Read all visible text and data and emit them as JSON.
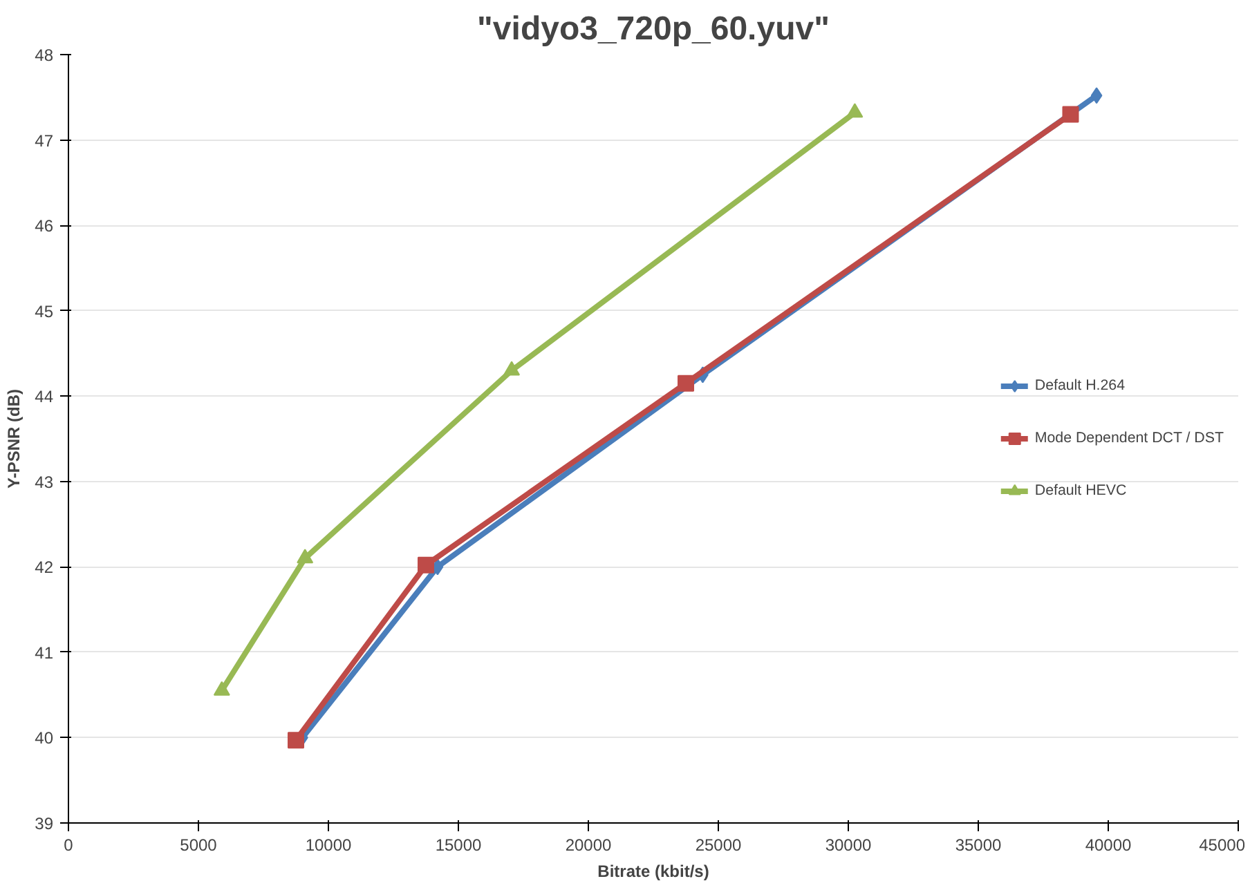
{
  "chart_data": {
    "type": "line",
    "title": "\"vidyo3_720p_60.yuv\"",
    "xlabel": "Bitrate (kbit/s)",
    "ylabel": "Y-PSNR (dB)",
    "xlim": [
      0,
      45000
    ],
    "xticks": [
      0,
      5000,
      10000,
      15000,
      20000,
      25000,
      30000,
      35000,
      40000,
      45000
    ],
    "ylim": [
      39,
      48
    ],
    "yticks": [
      39,
      40,
      41,
      42,
      43,
      44,
      45,
      46,
      47,
      48
    ],
    "grid": "y",
    "legend": "center right",
    "series": [
      {
        "name": "Default H.264",
        "color": "#4a7ebb",
        "marker": "diamond",
        "x": [
          9000,
          14200,
          24400,
          39550
        ],
        "values": [
          40.0,
          42.0,
          44.25,
          47.52
        ]
      },
      {
        "name": "Mode Dependent DCT / DST",
        "color": "#be4b48",
        "marker": "square",
        "x": [
          8750,
          13750,
          23750,
          38550
        ],
        "values": [
          39.97,
          42.02,
          44.15,
          47.3
        ]
      },
      {
        "name": "Default HEVC",
        "color": "#98b954",
        "marker": "triangle",
        "x": [
          5900,
          9100,
          17050,
          30250
        ],
        "values": [
          40.55,
          42.1,
          44.3,
          47.32
        ]
      }
    ]
  }
}
